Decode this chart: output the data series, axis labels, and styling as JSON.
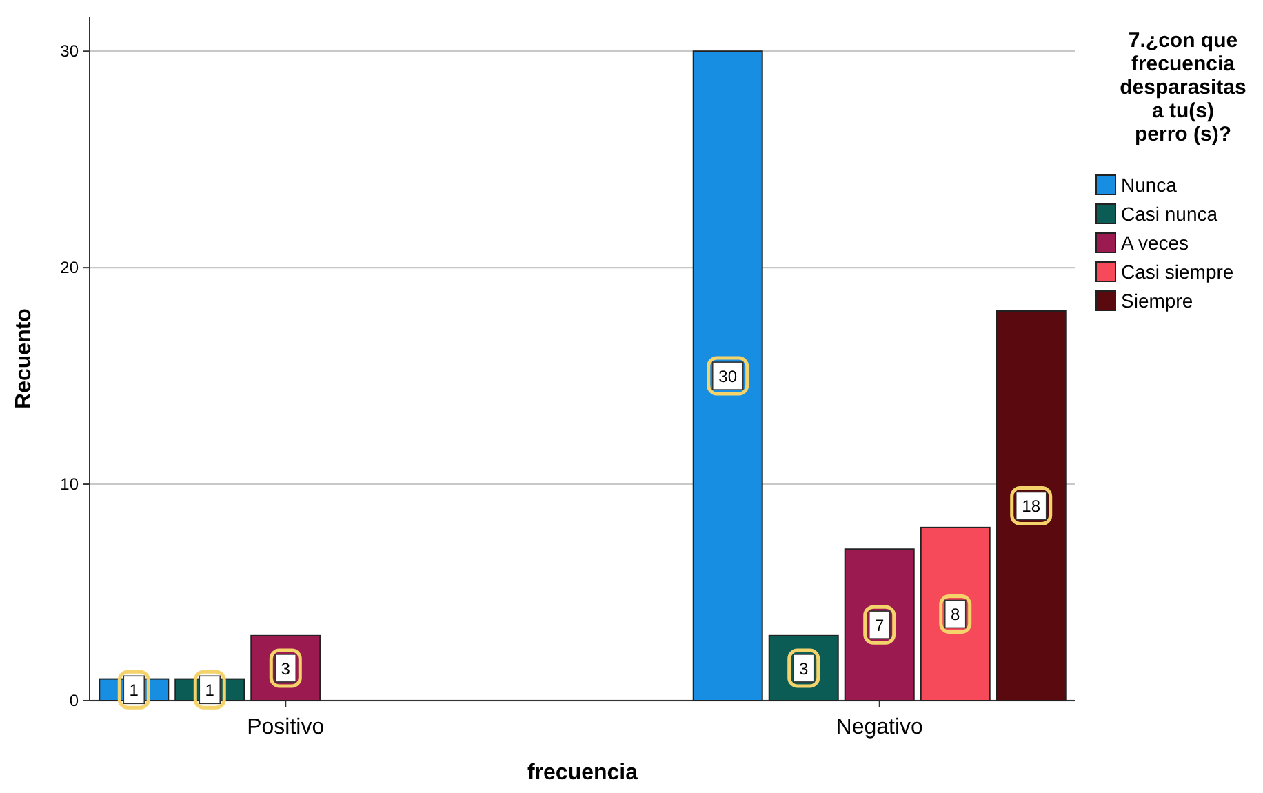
{
  "chart_data": {
    "type": "bar",
    "xlabel": "frecuencia",
    "ylabel": "Recuento",
    "legend_title": "7.¿con que frecuencia desparasitas a tu(s) perro (s)?",
    "categories": [
      "Positivo",
      "Negativo"
    ],
    "series": [
      {
        "name": "Nunca",
        "color": "#178ee2",
        "values": [
          1,
          30
        ]
      },
      {
        "name": "Casi nunca",
        "color": "#0b5c55",
        "values": [
          1,
          3
        ]
      },
      {
        "name": "A veces",
        "color": "#9b1a4f",
        "values": [
          3,
          7
        ]
      },
      {
        "name": "Casi siempre",
        "color": "#f6495a",
        "values": [
          null,
          8
        ]
      },
      {
        "name": "Siempre",
        "color": "#5a0a0e",
        "values": [
          null,
          18
        ]
      }
    ],
    "ylim": [
      0,
      31.6
    ],
    "yticks": [
      0,
      10,
      20,
      30
    ],
    "grid": "y",
    "legend": "top right",
    "data_labels": true
  }
}
